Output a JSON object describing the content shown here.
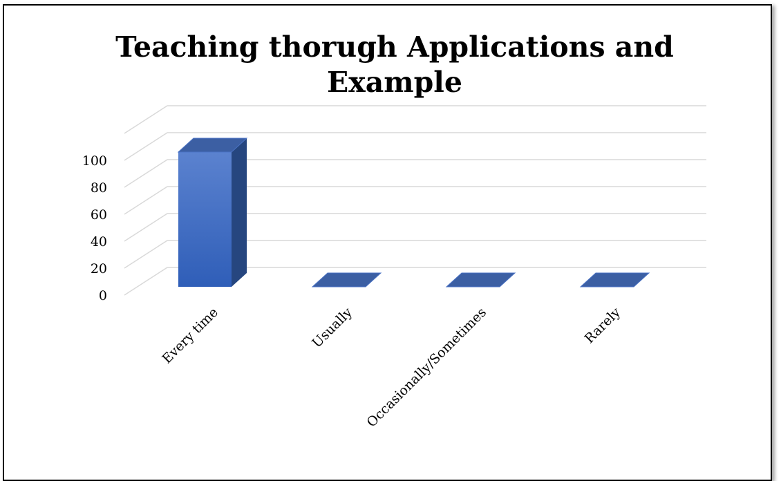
{
  "chart_data": {
    "type": "bar",
    "title": "Teaching thorugh Applications and Example",
    "categories": [
      "Every time",
      "Usually",
      "Occasionally/Sometimes",
      "Rarely"
    ],
    "values": [
      100,
      0,
      0,
      0
    ],
    "ylim": [
      0,
      100
    ],
    "yticks": [
      0,
      20,
      40,
      60,
      80,
      100
    ],
    "grid": true,
    "legend": "none",
    "colors": {
      "bar_front": "#3a6cc8",
      "bar_side": "#26467f",
      "bar_top": "#3c5fa3",
      "grid": "#d9d9d9"
    }
  }
}
